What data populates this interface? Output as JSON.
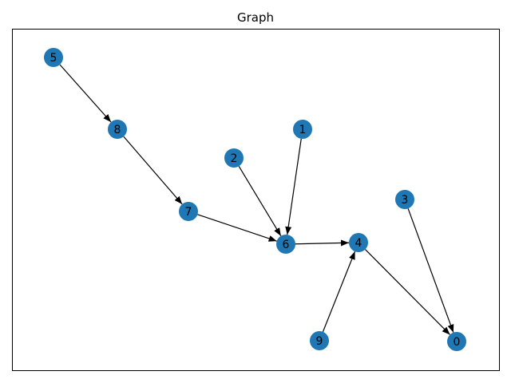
{
  "chart_data": {
    "type": "graph",
    "title": "Graph",
    "directed": true,
    "node_color": "#1f77b4",
    "edge_color": "#000000",
    "nodes": [
      "0",
      "1",
      "2",
      "3",
      "4",
      "5",
      "6",
      "7",
      "8",
      "9"
    ],
    "edges": [
      [
        "5",
        "8"
      ],
      [
        "8",
        "7"
      ],
      [
        "7",
        "6"
      ],
      [
        "2",
        "6"
      ],
      [
        "1",
        "6"
      ],
      [
        "6",
        "4"
      ],
      [
        "9",
        "4"
      ],
      [
        "4",
        "0"
      ],
      [
        "3",
        "0"
      ]
    ]
  }
}
